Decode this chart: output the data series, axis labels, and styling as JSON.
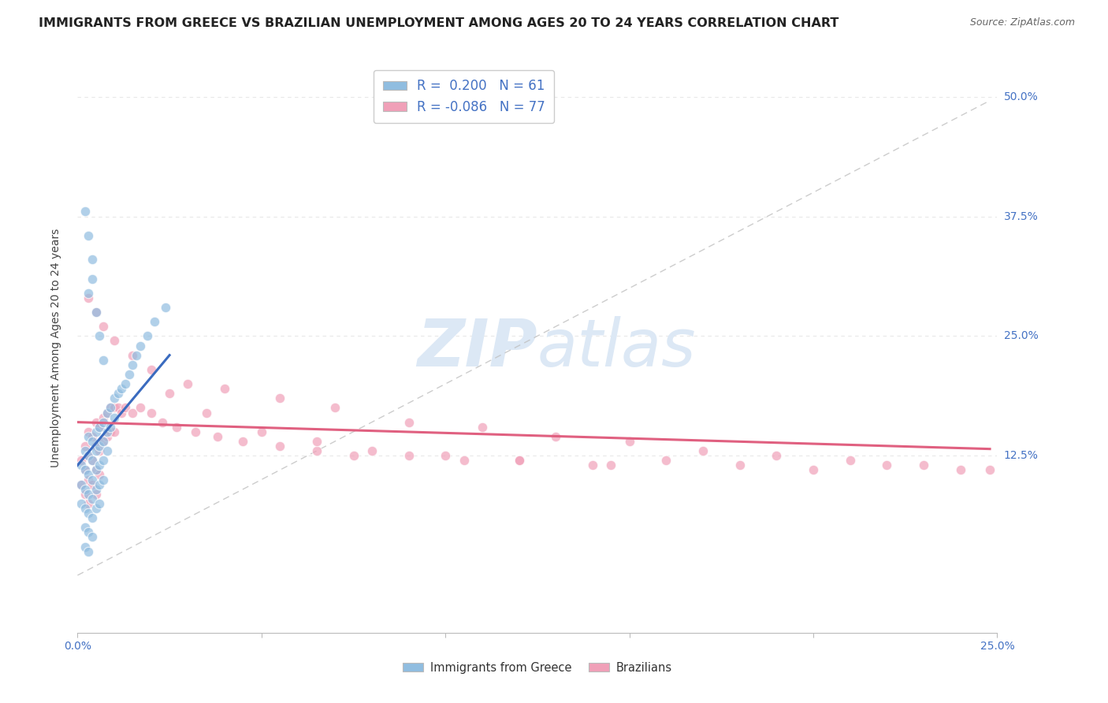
{
  "title": "IMMIGRANTS FROM GREECE VS BRAZILIAN UNEMPLOYMENT AMONG AGES 20 TO 24 YEARS CORRELATION CHART",
  "source": "Source: ZipAtlas.com",
  "ylabel": "Unemployment Among Ages 20 to 24 years",
  "ytick_labels": [
    "12.5%",
    "25.0%",
    "37.5%",
    "50.0%"
  ],
  "ytick_values": [
    0.125,
    0.25,
    0.375,
    0.5
  ],
  "xmin": 0.0,
  "xmax": 0.25,
  "ymin": -0.06,
  "ymax": 0.535,
  "blue_scatter_x": [
    0.001,
    0.001,
    0.001,
    0.002,
    0.002,
    0.002,
    0.002,
    0.002,
    0.002,
    0.003,
    0.003,
    0.003,
    0.003,
    0.003,
    0.003,
    0.003,
    0.004,
    0.004,
    0.004,
    0.004,
    0.004,
    0.004,
    0.005,
    0.005,
    0.005,
    0.005,
    0.005,
    0.006,
    0.006,
    0.006,
    0.006,
    0.006,
    0.007,
    0.007,
    0.007,
    0.007,
    0.008,
    0.008,
    0.008,
    0.009,
    0.009,
    0.01,
    0.01,
    0.011,
    0.012,
    0.013,
    0.014,
    0.015,
    0.016,
    0.017,
    0.019,
    0.021,
    0.024,
    0.004,
    0.003,
    0.002,
    0.003,
    0.004,
    0.005,
    0.006,
    0.007
  ],
  "blue_scatter_y": [
    0.115,
    0.095,
    0.075,
    0.13,
    0.11,
    0.09,
    0.07,
    0.05,
    0.03,
    0.145,
    0.125,
    0.105,
    0.085,
    0.065,
    0.045,
    0.025,
    0.14,
    0.12,
    0.1,
    0.08,
    0.06,
    0.04,
    0.15,
    0.13,
    0.11,
    0.09,
    0.07,
    0.155,
    0.135,
    0.115,
    0.095,
    0.075,
    0.16,
    0.14,
    0.12,
    0.1,
    0.17,
    0.15,
    0.13,
    0.175,
    0.155,
    0.185,
    0.165,
    0.19,
    0.195,
    0.2,
    0.21,
    0.22,
    0.23,
    0.24,
    0.25,
    0.265,
    0.28,
    0.33,
    0.355,
    0.38,
    0.295,
    0.31,
    0.275,
    0.25,
    0.225
  ],
  "pink_scatter_x": [
    0.001,
    0.001,
    0.002,
    0.002,
    0.002,
    0.003,
    0.003,
    0.003,
    0.003,
    0.004,
    0.004,
    0.004,
    0.005,
    0.005,
    0.005,
    0.005,
    0.006,
    0.006,
    0.006,
    0.007,
    0.007,
    0.008,
    0.008,
    0.009,
    0.009,
    0.01,
    0.01,
    0.011,
    0.012,
    0.013,
    0.015,
    0.017,
    0.02,
    0.023,
    0.027,
    0.032,
    0.038,
    0.045,
    0.055,
    0.065,
    0.075,
    0.09,
    0.105,
    0.12,
    0.14,
    0.16,
    0.18,
    0.2,
    0.22,
    0.24,
    0.003,
    0.005,
    0.007,
    0.01,
    0.015,
    0.02,
    0.03,
    0.04,
    0.055,
    0.07,
    0.09,
    0.11,
    0.13,
    0.15,
    0.17,
    0.19,
    0.21,
    0.23,
    0.248,
    0.025,
    0.035,
    0.05,
    0.065,
    0.08,
    0.1,
    0.12,
    0.145
  ],
  "pink_scatter_y": [
    0.12,
    0.095,
    0.135,
    0.11,
    0.085,
    0.15,
    0.125,
    0.1,
    0.075,
    0.145,
    0.12,
    0.095,
    0.16,
    0.135,
    0.11,
    0.085,
    0.155,
    0.13,
    0.105,
    0.165,
    0.14,
    0.17,
    0.145,
    0.175,
    0.15,
    0.175,
    0.15,
    0.175,
    0.17,
    0.175,
    0.17,
    0.175,
    0.17,
    0.16,
    0.155,
    0.15,
    0.145,
    0.14,
    0.135,
    0.13,
    0.125,
    0.125,
    0.12,
    0.12,
    0.115,
    0.12,
    0.115,
    0.11,
    0.115,
    0.11,
    0.29,
    0.275,
    0.26,
    0.245,
    0.23,
    0.215,
    0.2,
    0.195,
    0.185,
    0.175,
    0.16,
    0.155,
    0.145,
    0.14,
    0.13,
    0.125,
    0.12,
    0.115,
    0.11,
    0.19,
    0.17,
    0.15,
    0.14,
    0.13,
    0.125,
    0.12,
    0.115
  ],
  "blue_line_x": [
    0.0,
    0.025
  ],
  "blue_line_y": [
    0.115,
    0.23
  ],
  "pink_line_x": [
    0.0,
    0.248
  ],
  "pink_line_y": [
    0.16,
    0.132
  ],
  "ref_line_x": [
    0.0,
    0.248
  ],
  "ref_line_y": [
    0.0,
    0.496
  ],
  "grid_color": "#e8e8e8",
  "bg_color": "#ffffff",
  "blue_color": "#90bde0",
  "pink_color": "#f0a0b8",
  "blue_line_color": "#3a6bbf",
  "pink_line_color": "#e06080",
  "ref_line_color": "#c0c0c0",
  "title_fontsize": 11.5,
  "axis_label_fontsize": 10,
  "tick_fontsize": 10,
  "watermark_color": "#dce8f5",
  "watermark_fontsize": 60,
  "legend_blue_color": "#4472c4",
  "legend_pink_color": "#e07090"
}
